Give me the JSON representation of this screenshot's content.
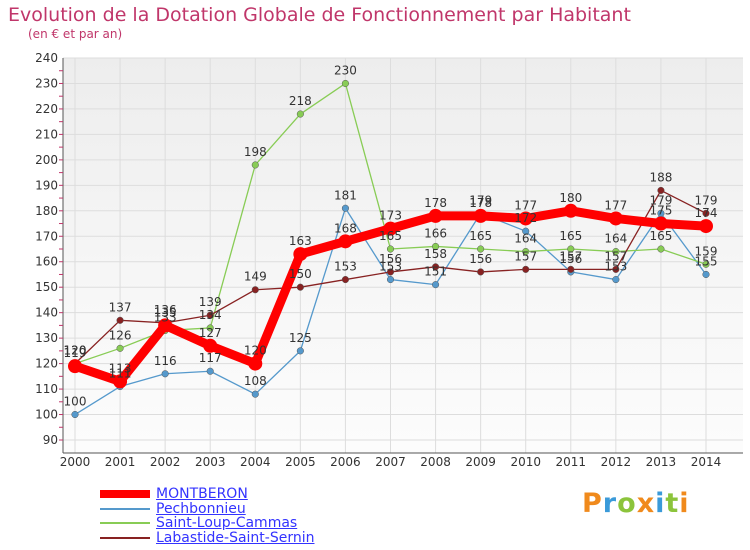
{
  "header": {
    "title": "Evolution de la Dotation Globale de Fonctionnement par Habitant",
    "subtitle": "(en € et par an)"
  },
  "brand": {
    "name": "Proxiti"
  },
  "chart_data": {
    "type": "line",
    "title": "Evolution de la Dotation Globale de Fonctionnement par Habitant",
    "subtitle": "(en € et par an)",
    "xlabel": "",
    "ylabel": "",
    "ylim": [
      90,
      240
    ],
    "ytick_step": 10,
    "grid": true,
    "legend_position": "bottom-left",
    "categories": [
      "2000",
      "2001",
      "2002",
      "2003",
      "2004",
      "2005",
      "2006",
      "2007",
      "2008",
      "2009",
      "2010",
      "2011",
      "2012",
      "2013",
      "2014"
    ],
    "series": [
      {
        "name": "MONTBERON",
        "color": "#ff0000",
        "values": [
          119,
          113,
          135,
          127,
          120,
          163,
          168,
          173,
          178,
          178,
          177,
          180,
          177,
          175,
          174
        ]
      },
      {
        "name": "Pechbonnieu",
        "color": "#5599cc",
        "values": [
          100,
          111,
          116,
          117,
          108,
          125,
          181,
          153,
          151,
          179,
          172,
          156,
          153,
          179,
          155
        ]
      },
      {
        "name": "Saint-Loup-Cammas",
        "color": "#88cc55",
        "values": [
          120,
          126,
          133,
          134,
          198,
          218,
          230,
          165,
          166,
          165,
          164,
          165,
          164,
          165,
          159
        ]
      },
      {
        "name": "Labastide-Saint-Sernin",
        "color": "#882222",
        "values": [
          120,
          137,
          136,
          139,
          149,
          150,
          153,
          156,
          158,
          156,
          157,
          157,
          157,
          188,
          179
        ]
      }
    ]
  }
}
